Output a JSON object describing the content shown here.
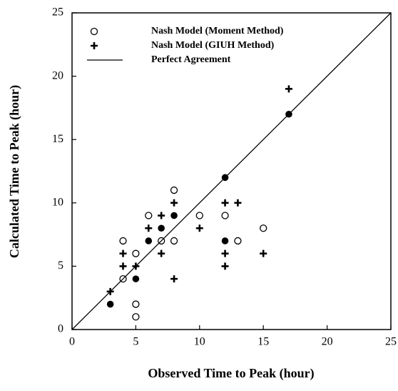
{
  "chart_data": {
    "type": "scatter",
    "xlabel": "Observed Time to Peak (hour)",
    "ylabel": "Calculated Time to Peak (hour)",
    "xlim": [
      0,
      25
    ],
    "ylim": [
      0,
      25
    ],
    "xticks": [
      0,
      5,
      10,
      15,
      20,
      25
    ],
    "yticks": [
      0,
      5,
      10,
      15,
      20,
      25
    ],
    "legend": "upper left",
    "series": [
      {
        "name": "Nash Model (Moment Method)",
        "marker": "open-circle",
        "color": "#000000",
        "x": [
          4,
          4,
          5,
          5,
          5,
          6,
          7,
          8,
          8,
          10,
          12,
          13,
          15
        ],
        "y": [
          7,
          4,
          6,
          2,
          1,
          9,
          7,
          11,
          7,
          9,
          9,
          7,
          8
        ]
      },
      {
        "name": "Nash Model (GIUH Method)",
        "marker": "plus",
        "color": "#000000",
        "x": [
          3,
          4,
          4,
          5,
          6,
          7,
          7,
          8,
          8,
          10,
          12,
          13,
          12,
          12,
          15,
          17
        ],
        "y": [
          3,
          6,
          5,
          5,
          8,
          9,
          6,
          10,
          4,
          8,
          10,
          10,
          6,
          5,
          6,
          19
        ]
      },
      {
        "marker": "filled-circle",
        "color": "#000000",
        "x": [
          3,
          5,
          6,
          7,
          8,
          12,
          12,
          17
        ],
        "y": [
          2,
          4,
          7,
          8,
          9,
          12,
          7,
          17
        ]
      },
      {
        "name": "Perfect Agreement",
        "marker": "line",
        "color": "#000000",
        "x": [
          0,
          25
        ],
        "y": [
          0,
          25
        ]
      }
    ]
  }
}
